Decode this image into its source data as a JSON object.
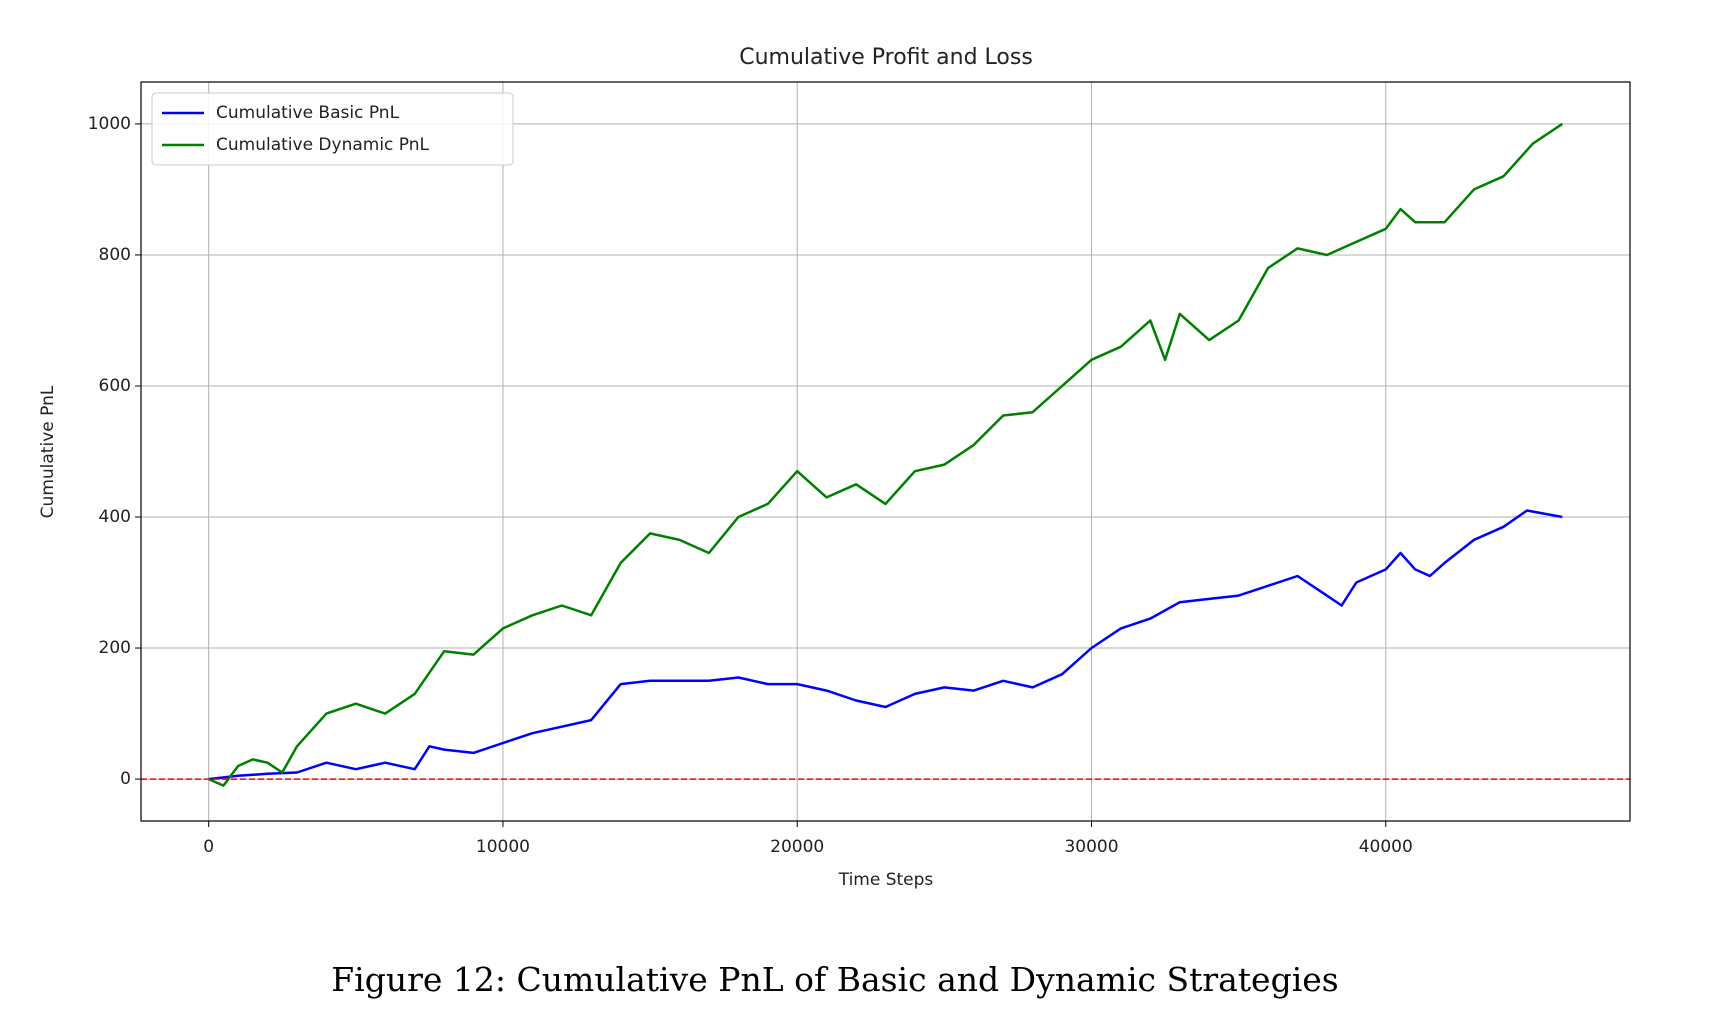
{
  "chart_data": {
    "type": "line",
    "title": "Cumulative Profit and Loss",
    "x_label": "Time Steps",
    "y_label": "Cumulative PnL",
    "xlim": [
      -2300,
      48300
    ],
    "ylim": [
      -64,
      1064
    ],
    "xticks": [
      0,
      10000,
      20000,
      30000,
      40000
    ],
    "yticks": [
      0,
      200,
      400,
      600,
      800,
      1000
    ],
    "grid": true,
    "legend": "upper left",
    "hline": {
      "value": 0,
      "color": "#ff0000",
      "style": "dashed"
    },
    "series": [
      {
        "name": "Cumulative Basic PnL",
        "color": "#0000ff",
        "x": [
          0,
          1000,
          2000,
          3000,
          4000,
          5000,
          6000,
          7000,
          7500,
          8000,
          9000,
          10000,
          11000,
          12000,
          13000,
          14000,
          15000,
          16000,
          17000,
          18000,
          19000,
          20000,
          21000,
          22000,
          23000,
          24000,
          25000,
          26000,
          27000,
          28000,
          29000,
          30000,
          31000,
          32000,
          33000,
          34000,
          35000,
          36000,
          37000,
          38000,
          38500,
          39000,
          40000,
          40500,
          41000,
          41500,
          42000,
          43000,
          44000,
          44800,
          46000
        ],
        "values": [
          0,
          5,
          8,
          10,
          25,
          15,
          25,
          15,
          50,
          45,
          40,
          55,
          70,
          80,
          90,
          145,
          150,
          150,
          150,
          155,
          145,
          145,
          135,
          120,
          110,
          130,
          140,
          135,
          150,
          140,
          160,
          200,
          230,
          245,
          270,
          275,
          280,
          295,
          310,
          280,
          265,
          300,
          320,
          345,
          320,
          310,
          330,
          365,
          385,
          410,
          400
        ]
      },
      {
        "name": "Cumulative Dynamic PnL",
        "color": "#008000",
        "x": [
          0,
          500,
          1000,
          1500,
          2000,
          2500,
          3000,
          4000,
          5000,
          6000,
          7000,
          8000,
          9000,
          10000,
          11000,
          12000,
          13000,
          14000,
          15000,
          16000,
          17000,
          18000,
          19000,
          20000,
          21000,
          22000,
          23000,
          24000,
          25000,
          26000,
          27000,
          28000,
          29000,
          30000,
          31000,
          32000,
          32500,
          33000,
          34000,
          35000,
          36000,
          37000,
          38000,
          39000,
          40000,
          40500,
          41000,
          42000,
          43000,
          44000,
          45000,
          46000
        ],
        "values": [
          0,
          -10,
          20,
          30,
          25,
          10,
          50,
          100,
          115,
          100,
          130,
          195,
          190,
          230,
          250,
          265,
          250,
          330,
          375,
          365,
          345,
          400,
          420,
          470,
          430,
          450,
          420,
          470,
          480,
          510,
          555,
          560,
          600,
          640,
          660,
          700,
          640,
          710,
          670,
          700,
          780,
          810,
          800,
          820,
          840,
          870,
          850,
          850,
          900,
          920,
          970,
          1000
        ]
      }
    ]
  },
  "caption": "Figure 12: Cumulative PnL of Basic and Dynamic Strategies"
}
